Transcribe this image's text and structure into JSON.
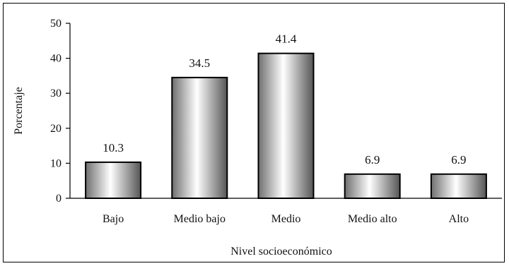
{
  "chart_data": {
    "type": "bar",
    "categories": [
      "Bajo",
      "Medio bajo",
      "Medio",
      "Medio alto",
      "Alto"
    ],
    "values": [
      10.3,
      34.5,
      41.4,
      6.9,
      6.9
    ],
    "data_labels": [
      "10.3",
      "34.5",
      "41.4",
      "6.9",
      "6.9"
    ],
    "xlabel": "Nivel socioeconómico",
    "ylabel": "Porcentaje",
    "ylim": [
      0,
      50
    ],
    "yticks": [
      "0",
      "10",
      "20",
      "30",
      "40",
      "50"
    ],
    "grid": false,
    "legend": "none",
    "bar_gradient": [
      "#6f6f6f",
      "#ffffff",
      "#555555"
    ]
  }
}
